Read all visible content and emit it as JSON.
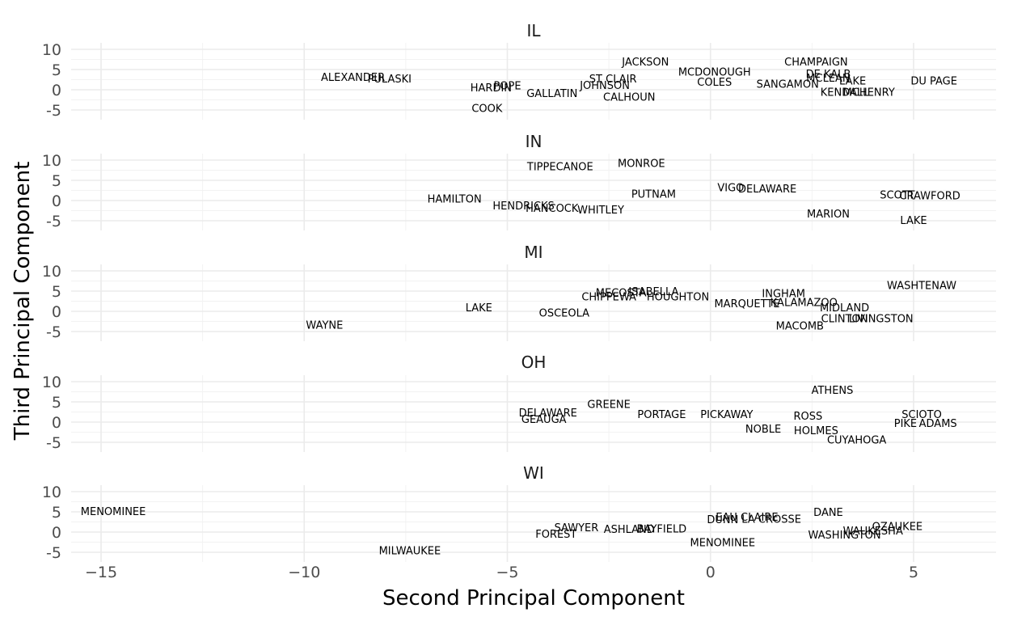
{
  "chart_data": {
    "type": "scatter",
    "xlabel": "Second Principal Component",
    "ylabel": "Third Principal Component",
    "xlim": [
      -16,
      7
    ],
    "ylim": [
      -5,
      10
    ],
    "x_ticks": [
      -15,
      -10,
      -5,
      0,
      5
    ],
    "y_ticks": [
      -5,
      0,
      5,
      10
    ],
    "grid": true,
    "facets": [
      {
        "state": "IL",
        "points": [
          {
            "label": "JACKSON",
            "x": -1.6,
            "y": 7
          },
          {
            "label": "CHAMPAIGN",
            "x": 2.6,
            "y": 7
          },
          {
            "label": "MCDONOUGH",
            "x": 0.1,
            "y": 4.5
          },
          {
            "label": "DE KALB",
            "x": 2.9,
            "y": 4
          },
          {
            "label": "ALEXANDER",
            "x": -8.8,
            "y": 3.2
          },
          {
            "label": "PULASKI",
            "x": -7.9,
            "y": 2.8
          },
          {
            "label": "ST CLAIR",
            "x": -2.4,
            "y": 2.8
          },
          {
            "label": "MCLEAN",
            "x": 2.9,
            "y": 3
          },
          {
            "label": "LAKE",
            "x": 3.5,
            "y": 2.3
          },
          {
            "label": "DU PAGE",
            "x": 5.5,
            "y": 2.3
          },
          {
            "label": "COLES",
            "x": 0.1,
            "y": 2
          },
          {
            "label": "SANGAMON",
            "x": 1.9,
            "y": 1.5
          },
          {
            "label": "HARDIN",
            "x": -5.4,
            "y": 0.6
          },
          {
            "label": "POPE",
            "x": -5,
            "y": 1.1
          },
          {
            "label": "JOHNSON",
            "x": -2.6,
            "y": 1.2
          },
          {
            "label": "GALLATIN",
            "x": -3.9,
            "y": -0.8
          },
          {
            "label": "MCHENRY",
            "x": 3.9,
            "y": -0.5
          },
          {
            "label": "KENDALL",
            "x": 3.3,
            "y": -0.5
          },
          {
            "label": "CALHOUN",
            "x": -2,
            "y": -1.7
          },
          {
            "label": "COOK",
            "x": -5.5,
            "y": -4.5
          }
        ]
      },
      {
        "state": "IN",
        "points": [
          {
            "label": "TIPPECANOE",
            "x": -3.7,
            "y": 8.5
          },
          {
            "label": "MONROE",
            "x": -1.7,
            "y": 9.3
          },
          {
            "label": "VIGO",
            "x": 0.5,
            "y": 3.3
          },
          {
            "label": "DELAWARE",
            "x": 1.4,
            "y": 3
          },
          {
            "label": "PUTNAM",
            "x": -1.4,
            "y": 1.7
          },
          {
            "label": "HAMILTON",
            "x": -6.3,
            "y": 0.5
          },
          {
            "label": "SCOTT",
            "x": 4.6,
            "y": 1.5
          },
          {
            "label": "CRAWFORD",
            "x": 5.4,
            "y": 1.3
          },
          {
            "label": "HENDRICKS",
            "x": -4.6,
            "y": -1.2
          },
          {
            "label": "HANCOCK",
            "x": -3.9,
            "y": -1.8
          },
          {
            "label": "WHITLEY",
            "x": -2.7,
            "y": -2.2
          },
          {
            "label": "MARION",
            "x": 2.9,
            "y": -3.2
          },
          {
            "label": "LAKE",
            "x": 5,
            "y": -4.8
          }
        ]
      },
      {
        "state": "MI",
        "points": [
          {
            "label": "WASHTENAW",
            "x": 5.2,
            "y": 6.5
          },
          {
            "label": "ISABELLA",
            "x": -1.4,
            "y": 5
          },
          {
            "label": "MECOSTA",
            "x": -2.2,
            "y": 4.7
          },
          {
            "label": "CHIPPEWA",
            "x": -2.5,
            "y": 3.7
          },
          {
            "label": "HOUGHTON",
            "x": -0.8,
            "y": 3.7
          },
          {
            "label": "INGHAM",
            "x": 1.8,
            "y": 4.5
          },
          {
            "label": "KALAMAZOO",
            "x": 2.3,
            "y": 2.3
          },
          {
            "label": "MARQUETTE",
            "x": 0.9,
            "y": 2
          },
          {
            "label": "MIDLAND",
            "x": 3.3,
            "y": 1
          },
          {
            "label": "LAKE",
            "x": -5.7,
            "y": 1
          },
          {
            "label": "OSCEOLA",
            "x": -3.6,
            "y": -0.3
          },
          {
            "label": "CLINTON",
            "x": 3.3,
            "y": -1.7
          },
          {
            "label": "LIVINGSTON",
            "x": 4.2,
            "y": -1.7
          },
          {
            "label": "MACOMB",
            "x": 2.2,
            "y": -3.5
          },
          {
            "label": "WAYNE",
            "x": -9.5,
            "y": -3.3
          }
        ]
      },
      {
        "state": "OH",
        "points": [
          {
            "label": "ATHENS",
            "x": 3.0,
            "y": 8
          },
          {
            "label": "GREENE",
            "x": -2.5,
            "y": 4.5
          },
          {
            "label": "DELAWARE",
            "x": -4,
            "y": 2.4
          },
          {
            "label": "PORTAGE",
            "x": -1.2,
            "y": 2
          },
          {
            "label": "PICKAWAY",
            "x": 0.4,
            "y": 2
          },
          {
            "label": "ROSS",
            "x": 2.4,
            "y": 1.6
          },
          {
            "label": "SCIOTO",
            "x": 5.2,
            "y": 2
          },
          {
            "label": "GEAUGA",
            "x": -4.1,
            "y": 0.8
          },
          {
            "label": "PIKE",
            "x": 4.8,
            "y": -0.2
          },
          {
            "label": "ADAMS",
            "x": 5.6,
            "y": -0.2
          },
          {
            "label": "NOBLE",
            "x": 1.3,
            "y": -1.6
          },
          {
            "label": "HOLMES",
            "x": 2.6,
            "y": -2
          },
          {
            "label": "CUYAHOGA",
            "x": 3.6,
            "y": -4.3
          }
        ]
      },
      {
        "state": "WI",
        "points": [
          {
            "label": "MENOMINEE",
            "x": -14.7,
            "y": 5.2
          },
          {
            "label": "DANE",
            "x": 2.9,
            "y": 5
          },
          {
            "label": "EAU CLAIRE",
            "x": 0.9,
            "y": 3.8
          },
          {
            "label": "LA CROSSE",
            "x": 1.5,
            "y": 3.3
          },
          {
            "label": "DUNN",
            "x": 0.3,
            "y": 3.2
          },
          {
            "label": "OZAUKEE",
            "x": 4.6,
            "y": 1.5
          },
          {
            "label": "SAWYER",
            "x": -3.3,
            "y": 1.2
          },
          {
            "label": "ASHLAND",
            "x": -2,
            "y": 0.8
          },
          {
            "label": "BAYFIELD",
            "x": -1.2,
            "y": 0.9
          },
          {
            "label": "FOREST",
            "x": -3.8,
            "y": -0.4
          },
          {
            "label": "WASHINGTON",
            "x": 3.3,
            "y": -0.6
          },
          {
            "label": "WAUKESHA",
            "x": 4.0,
            "y": 0.4
          },
          {
            "label": "MENOMINEE",
            "x": 0.3,
            "y": -2.5
          },
          {
            "label": "MILWAUKEE",
            "x": -7.4,
            "y": -4.5
          }
        ]
      }
    ]
  }
}
